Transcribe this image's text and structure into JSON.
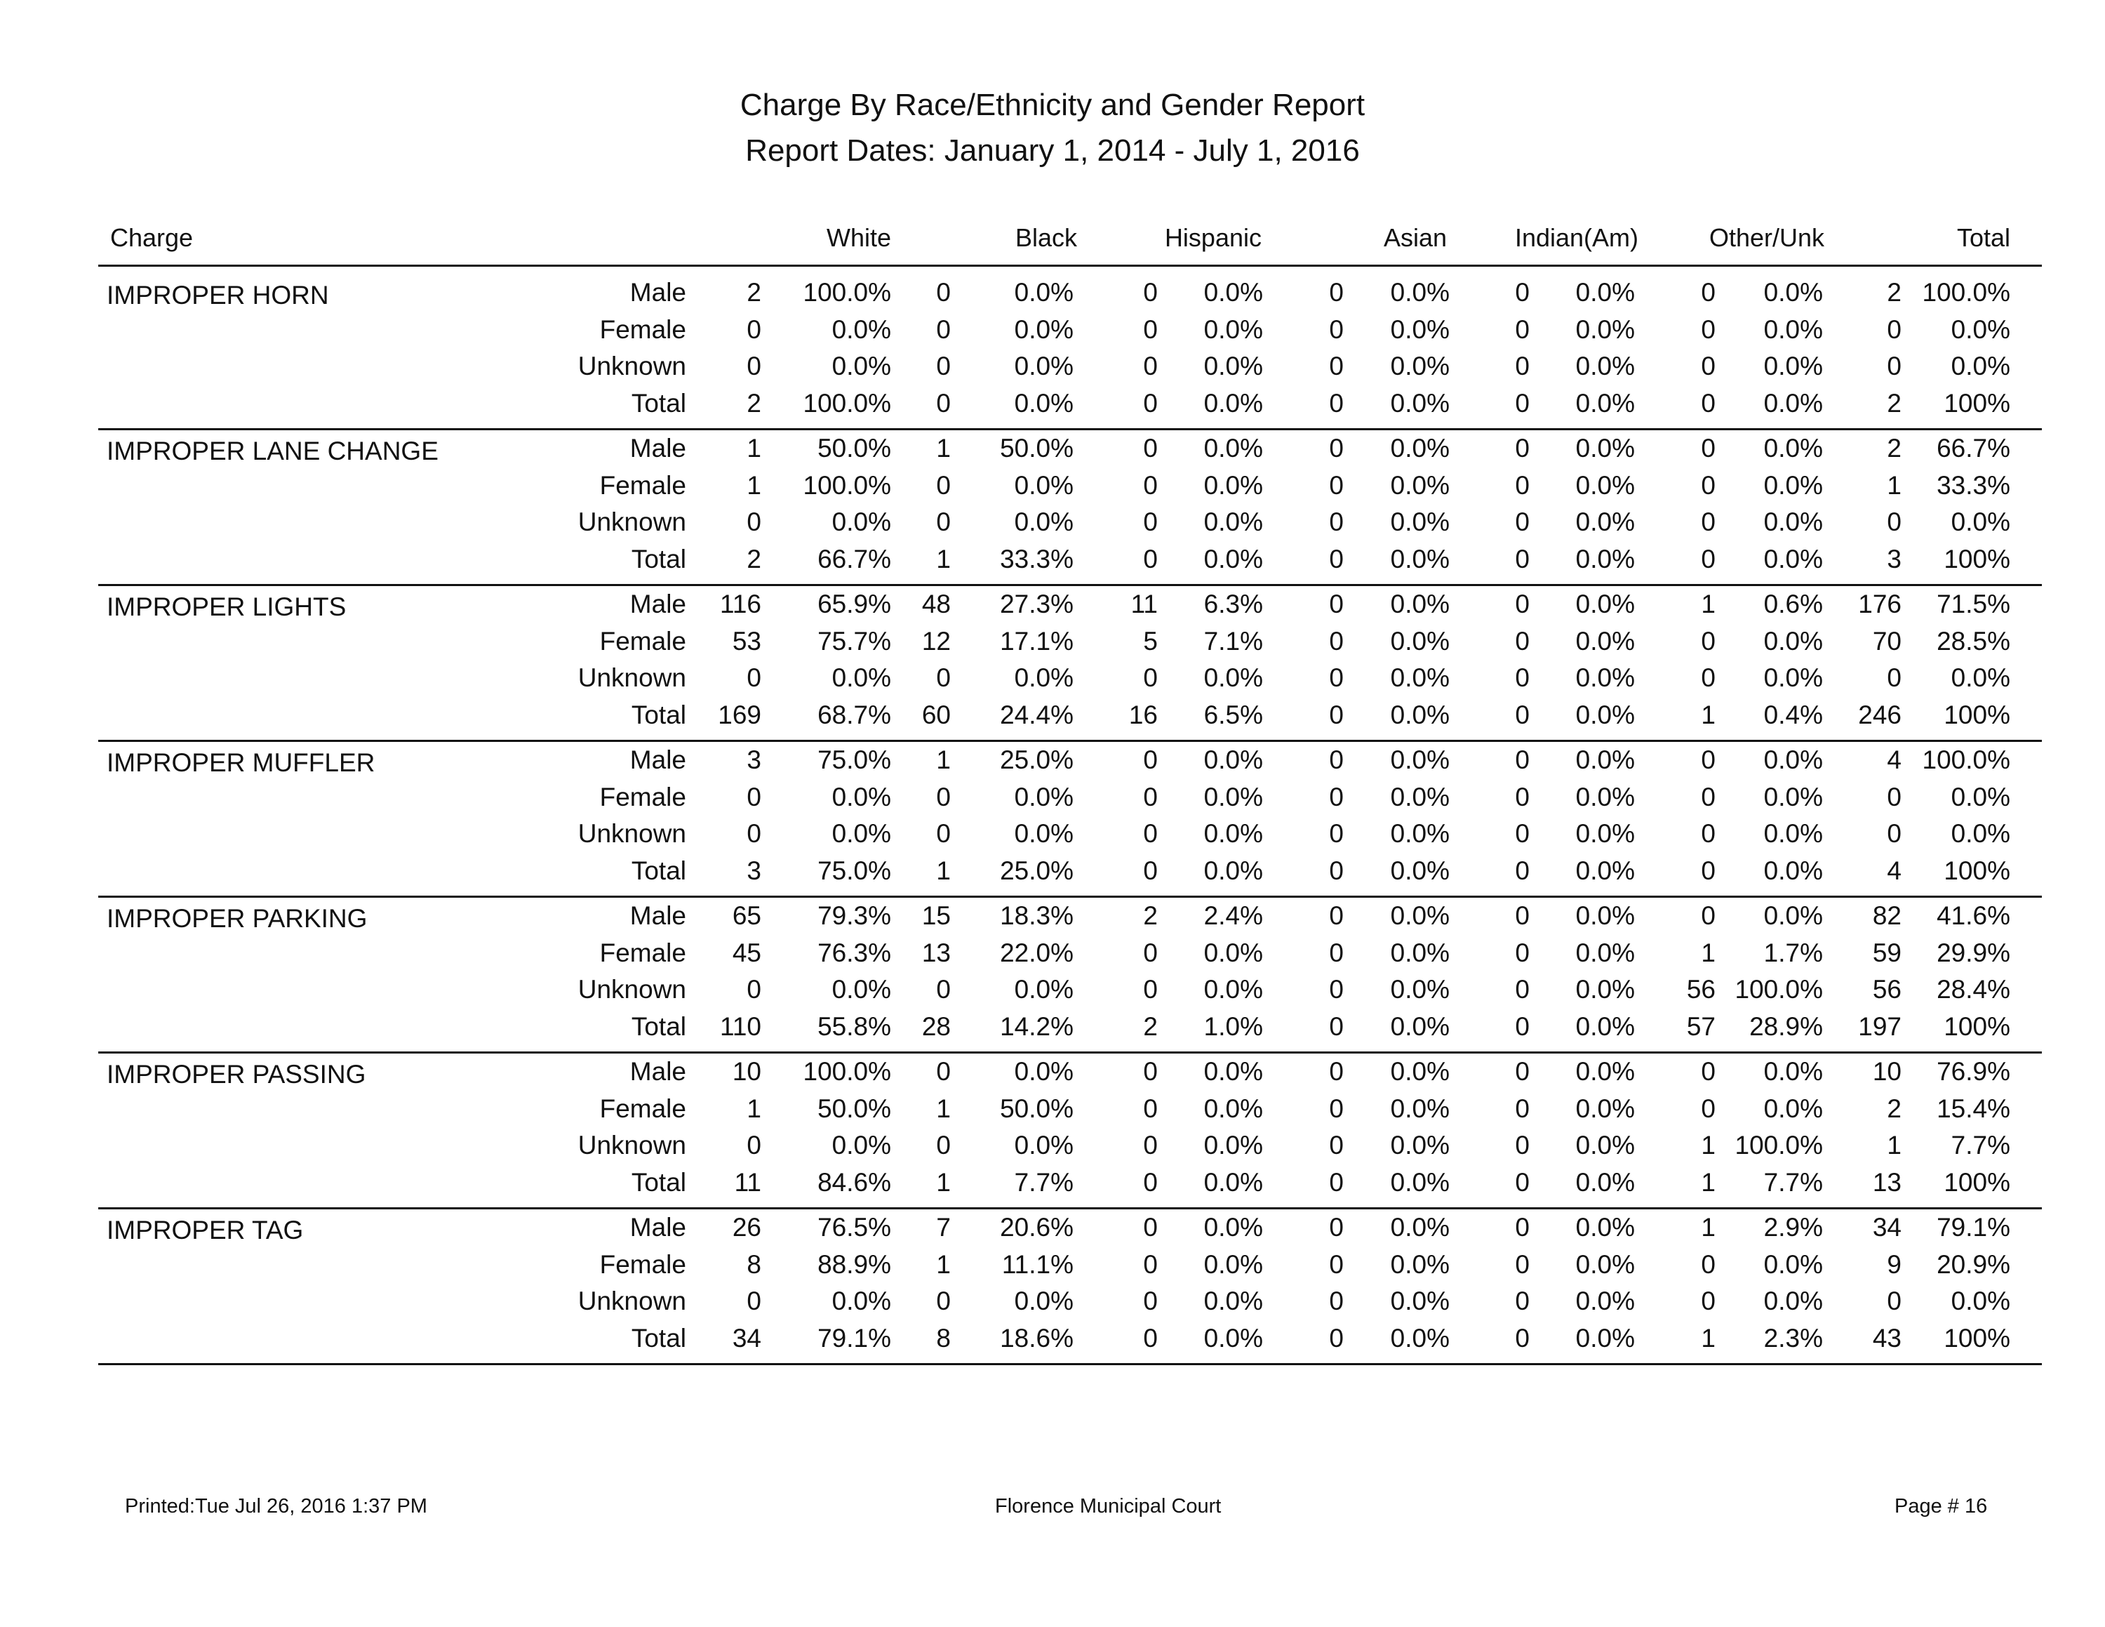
{
  "report": {
    "title": "Charge By Race/Ethnicity and Gender Report",
    "dates": "Report Dates: January 1, 2014 - July 1, 2016"
  },
  "headers": [
    "Charge",
    "White",
    "Black",
    "Hispanic",
    "Asian",
    "Indian(Am)",
    "Other/Unk",
    "Total"
  ],
  "groups": [
    {
      "charge": "IMPROPER HORN",
      "rows": [
        {
          "label": "Male",
          "cells": [
            "2",
            "100.0%",
            "0",
            "0.0%",
            "0",
            "0.0%",
            "0",
            "0.0%",
            "0",
            "0.0%",
            "0",
            "0.0%",
            "2",
            "100.0%"
          ]
        },
        {
          "label": "Female",
          "cells": [
            "0",
            "0.0%",
            "0",
            "0.0%",
            "0",
            "0.0%",
            "0",
            "0.0%",
            "0",
            "0.0%",
            "0",
            "0.0%",
            "0",
            "0.0%"
          ]
        },
        {
          "label": "Unknown",
          "cells": [
            "0",
            "0.0%",
            "0",
            "0.0%",
            "0",
            "0.0%",
            "0",
            "0.0%",
            "0",
            "0.0%",
            "0",
            "0.0%",
            "0",
            "0.0%"
          ]
        },
        {
          "label": "Total",
          "cells": [
            "2",
            "100.0%",
            "0",
            "0.0%",
            "0",
            "0.0%",
            "0",
            "0.0%",
            "0",
            "0.0%",
            "0",
            "0.0%",
            "2",
            "100%"
          ]
        }
      ]
    },
    {
      "charge": "IMPROPER LANE CHANGE",
      "rows": [
        {
          "label": "Male",
          "cells": [
            "1",
            "50.0%",
            "1",
            "50.0%",
            "0",
            "0.0%",
            "0",
            "0.0%",
            "0",
            "0.0%",
            "0",
            "0.0%",
            "2",
            "66.7%"
          ]
        },
        {
          "label": "Female",
          "cells": [
            "1",
            "100.0%",
            "0",
            "0.0%",
            "0",
            "0.0%",
            "0",
            "0.0%",
            "0",
            "0.0%",
            "0",
            "0.0%",
            "1",
            "33.3%"
          ]
        },
        {
          "label": "Unknown",
          "cells": [
            "0",
            "0.0%",
            "0",
            "0.0%",
            "0",
            "0.0%",
            "0",
            "0.0%",
            "0",
            "0.0%",
            "0",
            "0.0%",
            "0",
            "0.0%"
          ]
        },
        {
          "label": "Total",
          "cells": [
            "2",
            "66.7%",
            "1",
            "33.3%",
            "0",
            "0.0%",
            "0",
            "0.0%",
            "0",
            "0.0%",
            "0",
            "0.0%",
            "3",
            "100%"
          ]
        }
      ]
    },
    {
      "charge": "IMPROPER LIGHTS",
      "rows": [
        {
          "label": "Male",
          "cells": [
            "116",
            "65.9%",
            "48",
            "27.3%",
            "11",
            "6.3%",
            "0",
            "0.0%",
            "0",
            "0.0%",
            "1",
            "0.6%",
            "176",
            "71.5%"
          ]
        },
        {
          "label": "Female",
          "cells": [
            "53",
            "75.7%",
            "12",
            "17.1%",
            "5",
            "7.1%",
            "0",
            "0.0%",
            "0",
            "0.0%",
            "0",
            "0.0%",
            "70",
            "28.5%"
          ]
        },
        {
          "label": "Unknown",
          "cells": [
            "0",
            "0.0%",
            "0",
            "0.0%",
            "0",
            "0.0%",
            "0",
            "0.0%",
            "0",
            "0.0%",
            "0",
            "0.0%",
            "0",
            "0.0%"
          ]
        },
        {
          "label": "Total",
          "cells": [
            "169",
            "68.7%",
            "60",
            "24.4%",
            "16",
            "6.5%",
            "0",
            "0.0%",
            "0",
            "0.0%",
            "1",
            "0.4%",
            "246",
            "100%"
          ]
        }
      ]
    },
    {
      "charge": "IMPROPER MUFFLER",
      "rows": [
        {
          "label": "Male",
          "cells": [
            "3",
            "75.0%",
            "1",
            "25.0%",
            "0",
            "0.0%",
            "0",
            "0.0%",
            "0",
            "0.0%",
            "0",
            "0.0%",
            "4",
            "100.0%"
          ]
        },
        {
          "label": "Female",
          "cells": [
            "0",
            "0.0%",
            "0",
            "0.0%",
            "0",
            "0.0%",
            "0",
            "0.0%",
            "0",
            "0.0%",
            "0",
            "0.0%",
            "0",
            "0.0%"
          ]
        },
        {
          "label": "Unknown",
          "cells": [
            "0",
            "0.0%",
            "0",
            "0.0%",
            "0",
            "0.0%",
            "0",
            "0.0%",
            "0",
            "0.0%",
            "0",
            "0.0%",
            "0",
            "0.0%"
          ]
        },
        {
          "label": "Total",
          "cells": [
            "3",
            "75.0%",
            "1",
            "25.0%",
            "0",
            "0.0%",
            "0",
            "0.0%",
            "0",
            "0.0%",
            "0",
            "0.0%",
            "4",
            "100%"
          ]
        }
      ]
    },
    {
      "charge": "IMPROPER PARKING",
      "rows": [
        {
          "label": "Male",
          "cells": [
            "65",
            "79.3%",
            "15",
            "18.3%",
            "2",
            "2.4%",
            "0",
            "0.0%",
            "0",
            "0.0%",
            "0",
            "0.0%",
            "82",
            "41.6%"
          ]
        },
        {
          "label": "Female",
          "cells": [
            "45",
            "76.3%",
            "13",
            "22.0%",
            "0",
            "0.0%",
            "0",
            "0.0%",
            "0",
            "0.0%",
            "1",
            "1.7%",
            "59",
            "29.9%"
          ]
        },
        {
          "label": "Unknown",
          "cells": [
            "0",
            "0.0%",
            "0",
            "0.0%",
            "0",
            "0.0%",
            "0",
            "0.0%",
            "0",
            "0.0%",
            "56",
            "100.0%",
            "56",
            "28.4%"
          ]
        },
        {
          "label": "Total",
          "cells": [
            "110",
            "55.8%",
            "28",
            "14.2%",
            "2",
            "1.0%",
            "0",
            "0.0%",
            "0",
            "0.0%",
            "57",
            "28.9%",
            "197",
            "100%"
          ]
        }
      ]
    },
    {
      "charge": "IMPROPER PASSING",
      "rows": [
        {
          "label": "Male",
          "cells": [
            "10",
            "100.0%",
            "0",
            "0.0%",
            "0",
            "0.0%",
            "0",
            "0.0%",
            "0",
            "0.0%",
            "0",
            "0.0%",
            "10",
            "76.9%"
          ]
        },
        {
          "label": "Female",
          "cells": [
            "1",
            "50.0%",
            "1",
            "50.0%",
            "0",
            "0.0%",
            "0",
            "0.0%",
            "0",
            "0.0%",
            "0",
            "0.0%",
            "2",
            "15.4%"
          ]
        },
        {
          "label": "Unknown",
          "cells": [
            "0",
            "0.0%",
            "0",
            "0.0%",
            "0",
            "0.0%",
            "0",
            "0.0%",
            "0",
            "0.0%",
            "1",
            "100.0%",
            "1",
            "7.7%"
          ]
        },
        {
          "label": "Total",
          "cells": [
            "11",
            "84.6%",
            "1",
            "7.7%",
            "0",
            "0.0%",
            "0",
            "0.0%",
            "0",
            "0.0%",
            "1",
            "7.7%",
            "13",
            "100%"
          ]
        }
      ]
    },
    {
      "charge": "IMPROPER TAG",
      "rows": [
        {
          "label": "Male",
          "cells": [
            "26",
            "76.5%",
            "7",
            "20.6%",
            "0",
            "0.0%",
            "0",
            "0.0%",
            "0",
            "0.0%",
            "1",
            "2.9%",
            "34",
            "79.1%"
          ]
        },
        {
          "label": "Female",
          "cells": [
            "8",
            "88.9%",
            "1",
            "11.1%",
            "0",
            "0.0%",
            "0",
            "0.0%",
            "0",
            "0.0%",
            "0",
            "0.0%",
            "9",
            "20.9%"
          ]
        },
        {
          "label": "Unknown",
          "cells": [
            "0",
            "0.0%",
            "0",
            "0.0%",
            "0",
            "0.0%",
            "0",
            "0.0%",
            "0",
            "0.0%",
            "0",
            "0.0%",
            "0",
            "0.0%"
          ]
        },
        {
          "label": "Total",
          "cells": [
            "34",
            "79.1%",
            "8",
            "18.6%",
            "0",
            "0.0%",
            "0",
            "0.0%",
            "0",
            "0.0%",
            "1",
            "2.3%",
            "43",
            "100%"
          ]
        }
      ]
    }
  ],
  "footer": {
    "printed": "Printed:Tue Jul 26, 2016 1:37 PM",
    "court": "Florence Municipal Court",
    "page": "Page # 16"
  }
}
